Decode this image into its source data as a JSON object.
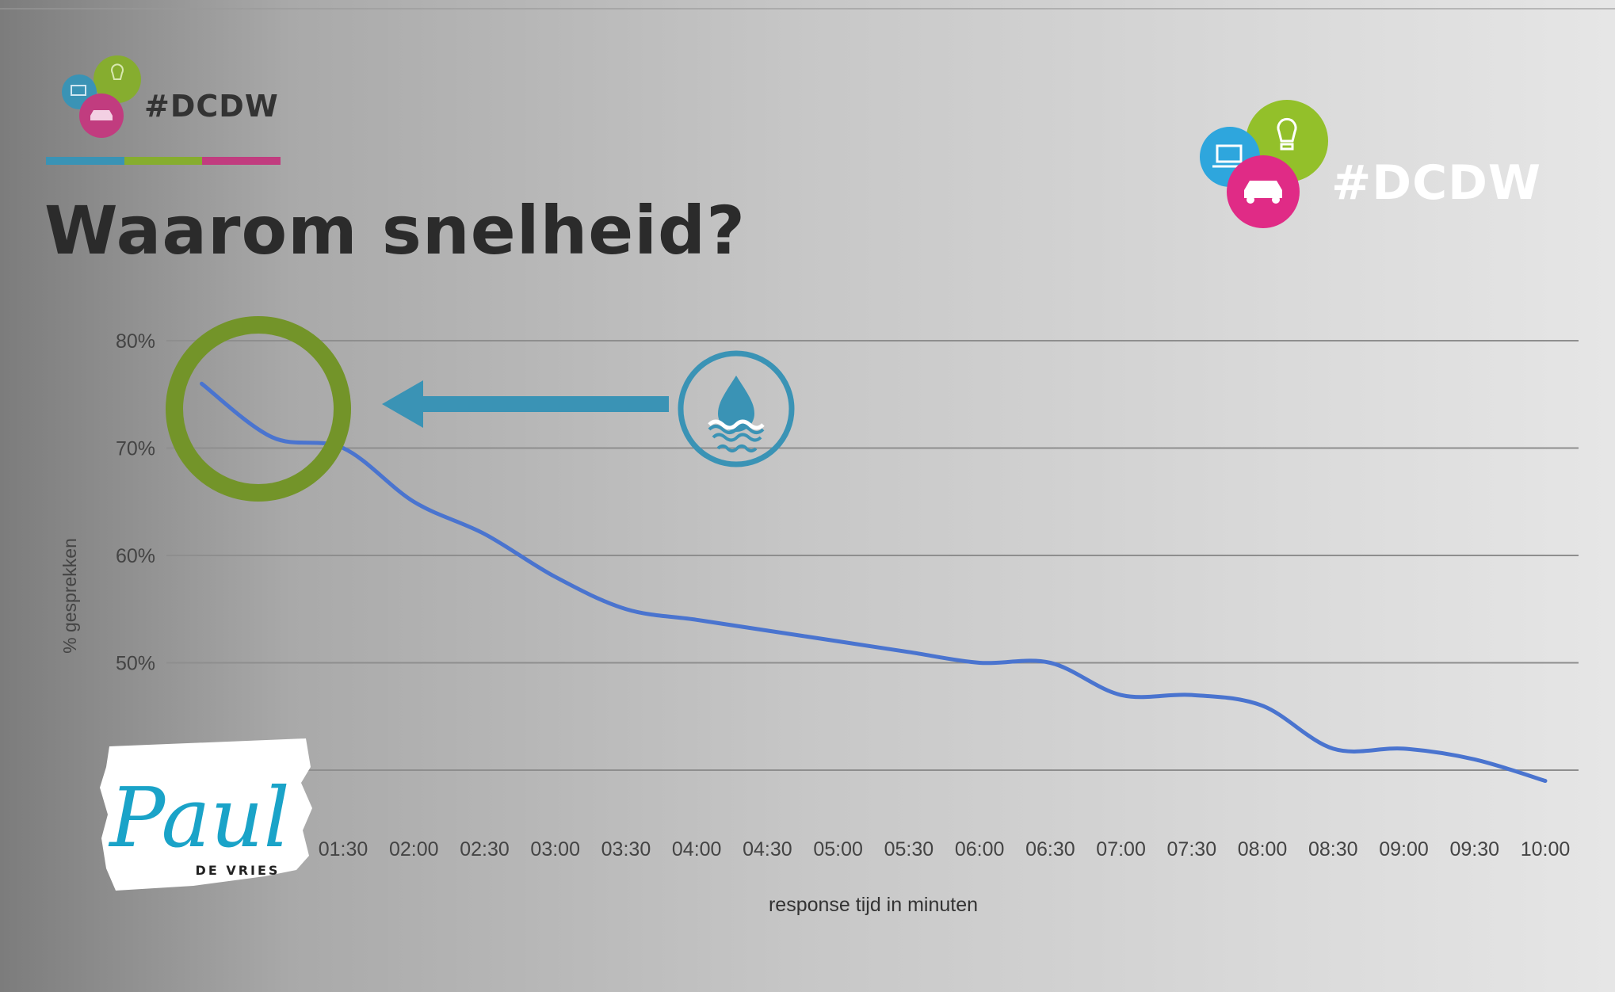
{
  "header": {
    "hashtag_small": "#DCDW",
    "hashtag_large": "#DCDW",
    "title": "Waarom snelheid?",
    "stripe_colors": [
      "#3a93b5",
      "#86ad2f",
      "#c13c7f"
    ]
  },
  "icons": {
    "logo": [
      "laptop-icon",
      "lightbulb-icon",
      "car-icon"
    ],
    "callout": "water-drop-icon",
    "annotation_arrow": "arrow-left-icon",
    "highlight": "circle-highlight-icon"
  },
  "colors": {
    "line": "#4a74cf",
    "highlight_ring": "#739429",
    "callout": "#3a93b5",
    "logo_blue": "#2ea6dd",
    "logo_green": "#93c02a",
    "logo_pink": "#e02b86"
  },
  "chart_data": {
    "type": "line",
    "xlabel": "response tijd in minuten",
    "ylabel": "% gesprekken",
    "x_ticks": [
      "01:30",
      "02:00",
      "02:30",
      "03:00",
      "03:30",
      "04:00",
      "04:30",
      "05:00",
      "05:30",
      "06:00",
      "06:30",
      "07:00",
      "07:30",
      "08:00",
      "08:30",
      "09:00",
      "09:30",
      "10:00"
    ],
    "y_ticks": [
      "80%",
      "70%",
      "60%",
      "50%"
    ],
    "y_tick_values": [
      80,
      70,
      60,
      50
    ],
    "ylim": [
      40,
      80
    ],
    "grid": true,
    "x_minutes": [
      0.5,
      1.0,
      1.5,
      2.0,
      2.5,
      3.0,
      3.5,
      4.0,
      4.5,
      5.0,
      5.5,
      6.0,
      6.5,
      7.0,
      7.5,
      8.0,
      8.5,
      9.0,
      9.5,
      10.0
    ],
    "values": [
      76,
      71,
      70,
      65,
      62,
      58,
      55,
      54,
      53,
      52,
      51,
      50,
      50,
      47,
      47,
      46,
      42,
      42,
      41,
      39
    ]
  },
  "signature": {
    "name": "Paul",
    "surname": "DE VRIES"
  }
}
